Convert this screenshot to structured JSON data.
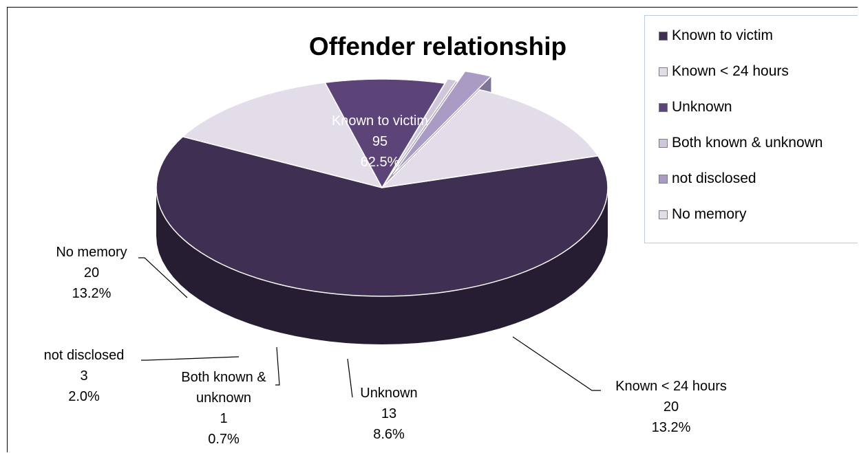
{
  "chart_data": {
    "type": "pie",
    "title": "Offender relationship",
    "slices": [
      {
        "label": "Known to victim",
        "value": 95,
        "percent": "62.5%",
        "color": "#3f2f52"
      },
      {
        "label": "Known < 24 hours",
        "value": 20,
        "percent": "13.2%",
        "color": "#e3dde9"
      },
      {
        "label": "Unknown",
        "value": 13,
        "percent": "8.6%",
        "color": "#5c4478"
      },
      {
        "label": "Both known & unknown",
        "value": 1,
        "percent": "0.7%",
        "color": "#cfc7d9"
      },
      {
        "label": "not disclosed",
        "value": 3,
        "percent": "2.0%",
        "color": "#a99bc4"
      },
      {
        "label": "No memory",
        "value": 20,
        "percent": "13.2%",
        "color": "#e3dde9"
      }
    ],
    "legend_position": "top-right",
    "style": "3d-exploded"
  },
  "data_labels": [
    {
      "name": "Known to victim",
      "lines": [
        "Known to victim",
        "95",
        "62.5%"
      ]
    },
    {
      "name": "Known < 24 hours",
      "lines": [
        "Known < 24 hours",
        "20",
        "13.2%"
      ]
    },
    {
      "name": "Unknown",
      "lines": [
        "Unknown",
        "13",
        "8.6%"
      ]
    },
    {
      "name": "Both known & unknown",
      "lines": [
        "Both known &",
        "unknown",
        "1",
        "0.7%"
      ]
    },
    {
      "name": "not disclosed",
      "lines": [
        "not disclosed",
        "3",
        "2.0%"
      ]
    },
    {
      "name": "No memory",
      "lines": [
        "No memory",
        "20",
        "13.2%"
      ]
    }
  ]
}
